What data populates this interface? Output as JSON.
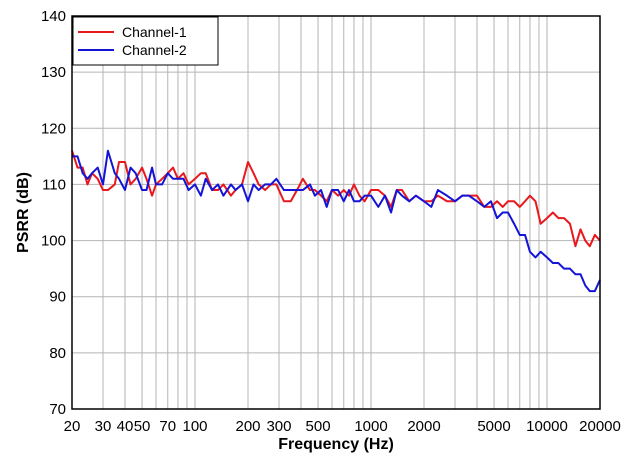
{
  "chart_data": {
    "type": "line",
    "title": "",
    "xlabel": "Frequency (Hz)",
    "ylabel": "PSRR (dB)",
    "x_scale": "log",
    "xlim": [
      20,
      20000
    ],
    "ylim": [
      70,
      140
    ],
    "grid": true,
    "legend_position": "top-left",
    "x_ticks": [
      20,
      30,
      40,
      50,
      70,
      100,
      200,
      300,
      500,
      1000,
      2000,
      5000,
      10000,
      20000
    ],
    "x_tick_labels": [
      "20",
      "30",
      "40",
      "50",
      "70",
      "100",
      "200",
      "300",
      "500",
      "1000",
      "2000",
      "5000",
      "10000",
      "20000"
    ],
    "y_ticks": [
      70,
      80,
      90,
      100,
      110,
      120,
      130,
      140
    ],
    "y_tick_labels": [
      "70",
      "80",
      "90",
      "100",
      "110",
      "120",
      "130",
      "140"
    ],
    "series": [
      {
        "name": "Channel-1",
        "color": "#e8191c",
        "x": [
          20,
          21.5,
          23,
          24.5,
          26,
          28,
          30,
          32,
          35,
          37,
          40,
          43,
          46,
          50,
          53,
          57,
          60,
          65,
          70,
          75,
          80,
          86,
          92,
          100,
          108,
          115,
          125,
          135,
          145,
          160,
          170,
          185,
          200,
          215,
          230,
          250,
          270,
          290,
          320,
          350,
          380,
          410,
          450,
          480,
          520,
          560,
          600,
          650,
          700,
          750,
          800,
          860,
          920,
          1000,
          1100,
          1200,
          1300,
          1400,
          1500,
          1650,
          1800,
          2000,
          2200,
          2400,
          2700,
          3000,
          3300,
          3600,
          4000,
          4400,
          4800,
          5200,
          5600,
          6000,
          6500,
          7000,
          7500,
          8000,
          8600,
          9200,
          10000,
          10800,
          11600,
          12500,
          13500,
          14500,
          15500,
          16500,
          17500,
          18700,
          20000
        ],
        "y": [
          116,
          113,
          113,
          110,
          112,
          111,
          109,
          109,
          110,
          114,
          114,
          110,
          111,
          113,
          111,
          108,
          110,
          111,
          112,
          113,
          111,
          112,
          110,
          111,
          112,
          112,
          109,
          109,
          110,
          108,
          109,
          110,
          114,
          112,
          110,
          109,
          110,
          110,
          107,
          107,
          109,
          111,
          109,
          109,
          108,
          107,
          109,
          108,
          109,
          108,
          110,
          108,
          107,
          109,
          109,
          108,
          106,
          109,
          109,
          107,
          108,
          107,
          107,
          108,
          107,
          107,
          108,
          108,
          108,
          106,
          106,
          107,
          106,
          107,
          107,
          106,
          107,
          108,
          107,
          103,
          104,
          105,
          104,
          104,
          103,
          99,
          102,
          100,
          99,
          101,
          100
        ]
      },
      {
        "name": "Channel-2",
        "color": "#1414d8",
        "x": [
          20,
          21.5,
          23,
          24.5,
          26,
          28,
          30,
          32,
          35,
          37,
          40,
          43,
          46,
          50,
          53,
          57,
          60,
          65,
          70,
          75,
          80,
          86,
          92,
          100,
          108,
          115,
          125,
          135,
          145,
          160,
          170,
          185,
          200,
          215,
          230,
          250,
          270,
          290,
          320,
          350,
          380,
          410,
          450,
          480,
          520,
          560,
          600,
          650,
          700,
          750,
          800,
          860,
          920,
          1000,
          1100,
          1200,
          1300,
          1400,
          1500,
          1650,
          1800,
          2000,
          2200,
          2400,
          2700,
          3000,
          3300,
          3600,
          4000,
          4400,
          4800,
          5200,
          5600,
          6000,
          6500,
          7000,
          7500,
          8000,
          8600,
          9200,
          10000,
          10800,
          11600,
          12500,
          13500,
          14500,
          15500,
          16500,
          17500,
          18700,
          20000
        ],
        "y": [
          115,
          115,
          112,
          111,
          112,
          113,
          110,
          116,
          112,
          111,
          109,
          113,
          112,
          109,
          109,
          113,
          110,
          110,
          112,
          111,
          111,
          111,
          109,
          110,
          108,
          111,
          109,
          110,
          108,
          110,
          109,
          110,
          107,
          110,
          109,
          110,
          110,
          111,
          109,
          109,
          109,
          109,
          110,
          108,
          109,
          106,
          109,
          109,
          107,
          109,
          107,
          107,
          108,
          108,
          106,
          108,
          105,
          109,
          108,
          107,
          108,
          107,
          106,
          109,
          108,
          107,
          108,
          108,
          107,
          106,
          107,
          104,
          105,
          105,
          103,
          101,
          101,
          98,
          97,
          98,
          97,
          96,
          96,
          95,
          95,
          94,
          94,
          92,
          91,
          91,
          93
        ]
      }
    ]
  }
}
